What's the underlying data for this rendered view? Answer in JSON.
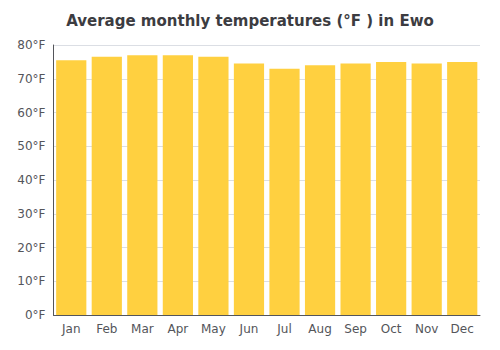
{
  "chart_data": {
    "type": "bar",
    "title": "Average monthly temperatures (°F ) in Ewo",
    "categories": [
      "Jan",
      "Feb",
      "Mar",
      "Apr",
      "May",
      "Jun",
      "Jul",
      "Aug",
      "Sep",
      "Oct",
      "Nov",
      "Dec"
    ],
    "values": [
      75.5,
      76.5,
      77.0,
      77.0,
      76.5,
      74.5,
      73.0,
      74.0,
      74.5,
      75.0,
      74.5,
      75.0
    ],
    "color": "#FFD040",
    "ylim": [
      0,
      80
    ],
    "yticks": [
      {
        "value": 0,
        "label": "0°F"
      },
      {
        "value": 10,
        "label": "10°F"
      },
      {
        "value": 20,
        "label": "20°F"
      },
      {
        "value": 30,
        "label": "30°F"
      },
      {
        "value": 40,
        "label": "40°F"
      },
      {
        "value": 50,
        "label": "50°F"
      },
      {
        "value": 60,
        "label": "60°F"
      },
      {
        "value": 70,
        "label": "70°F"
      },
      {
        "value": 80,
        "label": "80°F"
      }
    ],
    "grid": true
  }
}
